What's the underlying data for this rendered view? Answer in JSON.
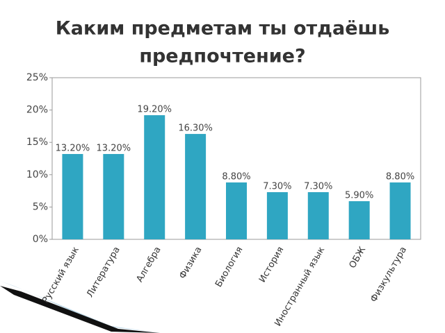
{
  "chart_data": {
    "type": "bar",
    "title": [
      "Каким предметам ты отдаёшь",
      "предпочтение?"
    ],
    "categories": [
      "Русский язык",
      "Литература",
      "Алгебра",
      "Физика",
      "Биология",
      "История",
      "Иностранный язык",
      "ОБЖ",
      "Физкультура"
    ],
    "values": [
      13.2,
      13.2,
      19.2,
      16.3,
      8.8,
      7.3,
      7.3,
      5.9,
      8.8
    ],
    "value_labels": [
      "13.20%",
      "13.20%",
      "19.20%",
      "16.30%",
      "8.80%",
      "7.30%",
      "7.30%",
      "5.90%",
      "8.80%"
    ],
    "color": "#2fa6c2",
    "ylim": [
      0,
      25
    ],
    "yticks": [
      {
        "value": 0,
        "label": "0%"
      },
      {
        "value": 5,
        "label": "5%"
      },
      {
        "value": 10,
        "label": "10%"
      },
      {
        "value": 15,
        "label": "15%"
      },
      {
        "value": 20,
        "label": "20%"
      },
      {
        "value": 25,
        "label": "25%"
      }
    ],
    "grid": false
  }
}
